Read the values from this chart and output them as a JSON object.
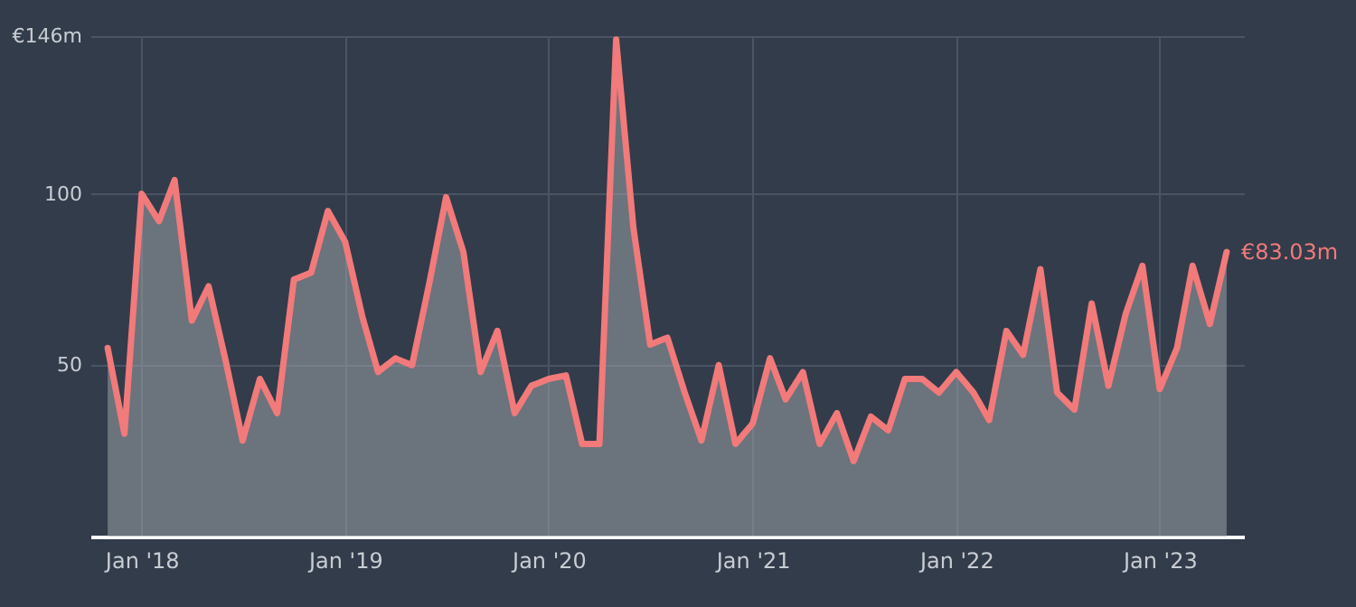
{
  "chart_data": {
    "type": "area",
    "xlim": [
      "2017-10",
      "2023-06"
    ],
    "ylim": [
      0,
      146
    ],
    "yticks": [
      {
        "value": 146,
        "label": "€146m"
      },
      100,
      50
    ],
    "xticks": [
      {
        "value": "2018-01",
        "label": "Jan '18"
      },
      {
        "value": "2019-01",
        "label": "Jan '19"
      },
      {
        "value": "2020-01",
        "label": "Jan '20"
      },
      {
        "value": "2021-01",
        "label": "Jan '21"
      },
      {
        "value": "2022-01",
        "label": "Jan '22"
      },
      {
        "value": "2023-01",
        "label": "Jan '23"
      }
    ],
    "grid": true,
    "x": [
      "2017-11",
      "2017-12",
      "2018-01",
      "2018-02",
      "2018-03",
      "2018-04",
      "2018-05",
      "2018-06",
      "2018-07",
      "2018-08",
      "2018-09",
      "2018-10",
      "2018-11",
      "2018-12",
      "2019-01",
      "2019-02",
      "2019-03",
      "2019-04",
      "2019-05",
      "2019-06",
      "2019-07",
      "2019-08",
      "2019-09",
      "2019-10",
      "2019-11",
      "2019-12",
      "2020-01",
      "2020-02",
      "2020-03",
      "2020-04",
      "2020-05",
      "2020-06",
      "2020-07",
      "2020-08",
      "2020-09",
      "2020-10",
      "2020-11",
      "2020-12",
      "2021-01",
      "2021-02",
      "2021-03",
      "2021-04",
      "2021-05",
      "2021-06",
      "2021-07",
      "2021-08",
      "2021-09",
      "2021-10",
      "2021-11",
      "2021-12",
      "2022-01",
      "2022-02",
      "2022-03",
      "2022-04",
      "2022-05",
      "2022-06",
      "2022-07",
      "2022-08",
      "2022-09",
      "2022-10",
      "2022-11",
      "2022-12",
      "2023-01",
      "2023-02",
      "2023-03",
      "2023-04",
      "2023-05"
    ],
    "series": [
      {
        "color": "#f27a7a",
        "values": [
          55,
          30,
          100,
          92,
          104,
          63,
          73,
          51,
          28,
          46,
          36,
          75,
          77,
          95,
          86,
          64,
          48,
          52,
          50,
          74,
          99,
          83,
          48,
          60,
          36,
          44,
          46,
          47,
          27,
          27,
          145,
          90,
          56,
          58,
          42,
          28,
          50,
          27,
          33,
          52,
          40,
          48,
          27,
          36,
          22,
          35,
          31,
          46,
          46,
          42,
          48,
          42,
          34,
          60,
          53,
          78,
          42,
          37,
          68,
          44,
          65,
          79,
          43,
          55,
          79,
          62,
          83.03
        ]
      }
    ],
    "annotations": [
      {
        "text": "€83.03m",
        "x": "2023-05",
        "y": 83.03
      }
    ]
  }
}
